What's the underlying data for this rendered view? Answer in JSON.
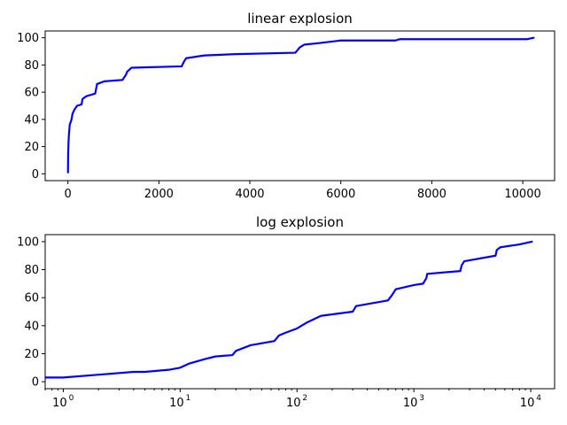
{
  "chart_data": [
    {
      "type": "line",
      "title": "linear explosion",
      "xscale": "linear",
      "xlim": [
        -500,
        10700
      ],
      "ylim": [
        -5,
        105
      ],
      "xticks": [
        0,
        2000,
        4000,
        6000,
        8000,
        10000
      ],
      "xtick_labels": [
        "0",
        "2000",
        "4000",
        "6000",
        "8000",
        "10000"
      ],
      "yticks": [
        0,
        20,
        40,
        60,
        80,
        100
      ],
      "ytick_labels": [
        "0",
        "20",
        "40",
        "60",
        "80",
        "100"
      ],
      "grid": false,
      "series": [
        {
          "color": "#0000ff",
          "x": [
            1,
            5,
            10,
            20,
            40,
            80,
            100,
            140,
            160,
            200,
            300,
            320,
            400,
            600,
            640,
            800,
            1200,
            1280,
            1300,
            1400,
            2500,
            2560,
            2600,
            3000,
            3700,
            5000,
            5100,
            5200,
            5500,
            6000,
            7200,
            7300,
            8000,
            10100,
            10240
          ],
          "y": [
            1,
            14,
            20,
            28,
            36,
            40,
            44,
            47,
            48,
            50,
            51,
            55,
            57,
            59,
            66,
            68,
            69,
            73,
            75,
            78,
            79,
            83,
            85,
            87,
            88,
            89,
            93,
            95,
            96,
            98,
            98,
            99,
            99,
            99,
            100
          ]
        }
      ]
    },
    {
      "type": "line",
      "title": "log explosion",
      "xscale": "log",
      "xlim": [
        0.7,
        16000
      ],
      "ylim": [
        -5,
        105
      ],
      "xticks": [
        1,
        10,
        100,
        1000,
        10000
      ],
      "xtick_labels": [
        {
          "base": "10",
          "exp": "0"
        },
        {
          "base": "10",
          "exp": "1"
        },
        {
          "base": "10",
          "exp": "2"
        },
        {
          "base": "10",
          "exp": "3"
        },
        {
          "base": "10",
          "exp": "4"
        }
      ],
      "yticks": [
        0,
        20,
        40,
        60,
        80,
        100
      ],
      "ytick_labels": [
        "0",
        "20",
        "40",
        "60",
        "80",
        "100"
      ],
      "grid": false,
      "series": [
        {
          "color": "#0000ff",
          "x": [
            0.7,
            1,
            2,
            4,
            5,
            8,
            10,
            12,
            16,
            20,
            28,
            30,
            40,
            64,
            70,
            80,
            100,
            120,
            160,
            300,
            320,
            600,
            640,
            700,
            1000,
            1200,
            1280,
            1300,
            2500,
            2560,
            2700,
            5000,
            5120,
            5500,
            8000,
            10240
          ],
          "y": [
            3,
            3,
            5,
            7,
            7,
            8.5,
            10,
            13,
            16,
            18,
            19,
            22,
            26,
            29,
            33,
            35,
            38,
            42,
            47,
            50,
            54,
            58,
            61,
            66,
            69,
            70,
            74,
            77,
            79,
            83,
            86,
            90,
            94,
            96,
            98,
            100
          ]
        }
      ]
    }
  ]
}
